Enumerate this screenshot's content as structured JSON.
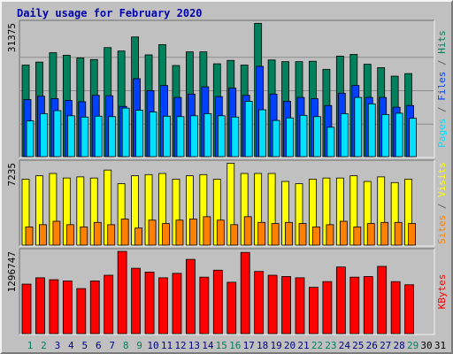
{
  "title": "Daily usage for February 2020",
  "colors": {
    "background": "#c0c0c0",
    "title": "#0000aa",
    "hits": "#00805c",
    "files": "#0040ff",
    "pages": "#00e0ff",
    "visits": "#ffff00",
    "sites": "#ff8000",
    "kbytes": "#ff0000",
    "weekend_day_label": "#00805c",
    "weekday_label": "#000080",
    "future_day_label": "#000000"
  },
  "chart_data": [
    {
      "type": "bar",
      "panel": "top",
      "max_label": "31375",
      "ylim": [
        0,
        31375
      ],
      "x": [
        1,
        2,
        3,
        4,
        5,
        6,
        7,
        8,
        9,
        10,
        11,
        12,
        13,
        14,
        15,
        16,
        17,
        18,
        19,
        20,
        21,
        22,
        23,
        24,
        25,
        26,
        27,
        28,
        29
      ],
      "series": [
        {
          "name": "Hits",
          "values": [
            21500,
            22200,
            24400,
            23800,
            23200,
            22800,
            25600,
            24800,
            28100,
            23900,
            26300,
            21400,
            24600,
            24600,
            21800,
            22600,
            21500,
            31300,
            22700,
            22300,
            22300,
            22400,
            20500,
            23600,
            24000,
            21700,
            20900,
            18900,
            19500
          ]
        },
        {
          "name": "Files",
          "values": [
            13400,
            14200,
            13600,
            13200,
            12900,
            14400,
            14300,
            11800,
            18300,
            15500,
            16700,
            13900,
            14700,
            16400,
            14100,
            16100,
            14400,
            21200,
            14700,
            13000,
            13900,
            13600,
            12000,
            14900,
            16700,
            13900,
            13900,
            11600,
            12000
          ]
        },
        {
          "name": "Pages",
          "values": [
            8400,
            10100,
            10800,
            9600,
            9300,
            9500,
            9400,
            11400,
            10900,
            10500,
            9500,
            9400,
            9600,
            10100,
            9600,
            9300,
            13000,
            11000,
            8500,
            9100,
            9700,
            9400,
            6900,
            10100,
            13900,
            12400,
            9900,
            10200,
            9000
          ]
        }
      ]
    },
    {
      "type": "bar",
      "panel": "middle",
      "max_label": "7235",
      "ylim": [
        0,
        7235
      ],
      "x": [
        1,
        2,
        3,
        4,
        5,
        6,
        7,
        8,
        9,
        10,
        11,
        12,
        13,
        14,
        15,
        16,
        17,
        18,
        19,
        20,
        21,
        22,
        23,
        24,
        25,
        26,
        27,
        28,
        29
      ],
      "series": [
        {
          "name": "Visits",
          "values": [
            5800,
            6100,
            6300,
            5900,
            6000,
            5900,
            6600,
            5400,
            6100,
            6200,
            6300,
            5800,
            6100,
            6200,
            5800,
            7200,
            6300,
            6300,
            6300,
            5600,
            5400,
            5800,
            5900,
            5900,
            6100,
            5600,
            6000,
            5500,
            5800
          ]
        },
        {
          "name": "Sites",
          "values": [
            1600,
            1800,
            2100,
            1800,
            1600,
            2000,
            1800,
            2300,
            1500,
            2200,
            1900,
            2200,
            2300,
            2500,
            2200,
            1800,
            2500,
            2000,
            1900,
            2000,
            1900,
            1600,
            1800,
            2100,
            1600,
            1900,
            2000,
            2000,
            1900
          ]
        }
      ]
    },
    {
      "type": "bar",
      "panel": "bottom",
      "max_label": "1296747",
      "ylim": [
        0,
        1296747
      ],
      "x": [
        1,
        2,
        3,
        4,
        5,
        6,
        7,
        8,
        9,
        10,
        11,
        12,
        13,
        14,
        15,
        16,
        17,
        18,
        19,
        20,
        21,
        22,
        23,
        24,
        25,
        26,
        27,
        28,
        29
      ],
      "series": [
        {
          "name": "KBytes",
          "values": [
            780000,
            880000,
            850000,
            830000,
            710000,
            830000,
            920000,
            1296000,
            1030000,
            970000,
            880000,
            950000,
            1170000,
            890000,
            1000000,
            810000,
            1280000,
            980000,
            920000,
            900000,
            880000,
            730000,
            820000,
            1050000,
            890000,
            900000,
            1060000,
            820000,
            770000
          ]
        }
      ]
    }
  ],
  "x_labels": [
    "1",
    "2",
    "3",
    "4",
    "5",
    "6",
    "7",
    "8",
    "9",
    "10",
    "11",
    "12",
    "13",
    "14",
    "15",
    "16",
    "17",
    "18",
    "19",
    "20",
    "21",
    "22",
    "23",
    "24",
    "25",
    "26",
    "27",
    "28",
    "29",
    "30",
    "31"
  ],
  "weekend_days": [
    1,
    2,
    8,
    9,
    15,
    16,
    22,
    23,
    29
  ],
  "future_days": [
    30,
    31
  ],
  "right_labels": {
    "top": [
      {
        "text": "Pages",
        "color": "#00e0ff"
      },
      {
        "text": " / ",
        "color": "#606060"
      },
      {
        "text": "Files",
        "color": "#0040ff"
      },
      {
        "text": " / ",
        "color": "#606060"
      },
      {
        "text": "Hits",
        "color": "#00805c"
      }
    ],
    "middle": [
      {
        "text": "Sites",
        "color": "#ff8000"
      },
      {
        "text": " / ",
        "color": "#606060"
      },
      {
        "text": "Visits",
        "color": "#ffff00"
      }
    ],
    "bottom": [
      {
        "text": "KBytes",
        "color": "#ff0000"
      }
    ]
  }
}
